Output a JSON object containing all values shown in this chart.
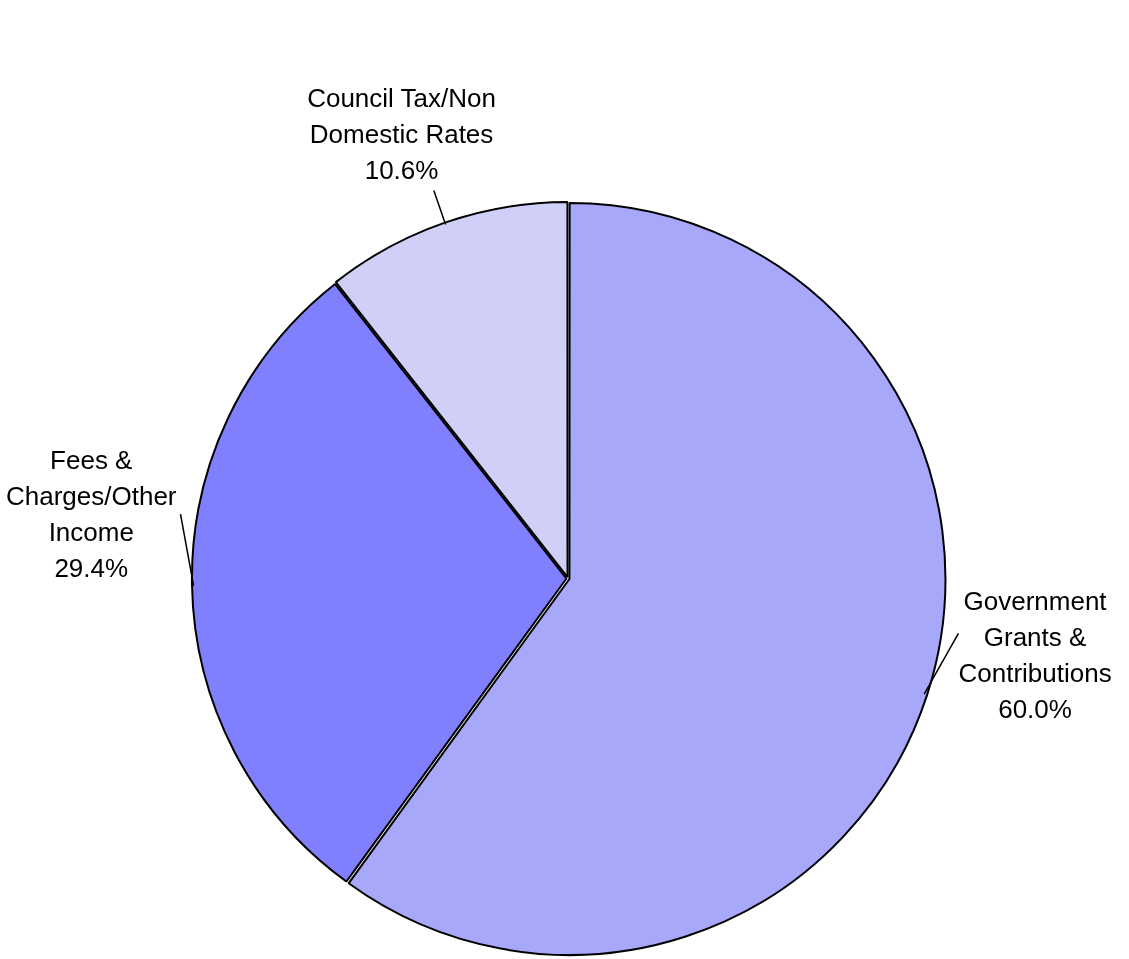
{
  "chart_data": {
    "type": "pie",
    "categories": [
      "Government Grants & Contributions",
      "Fees & Charges/Other Income",
      "Council Tax/Non Domestic Rates"
    ],
    "values": [
      60.0,
      29.4,
      10.6
    ],
    "value_labels": [
      "60.0%",
      "29.4%",
      "10.6%"
    ],
    "colors": [
      "#a8a8fa",
      "#8080ff",
      "#cfcff8"
    ],
    "legend": false
  }
}
